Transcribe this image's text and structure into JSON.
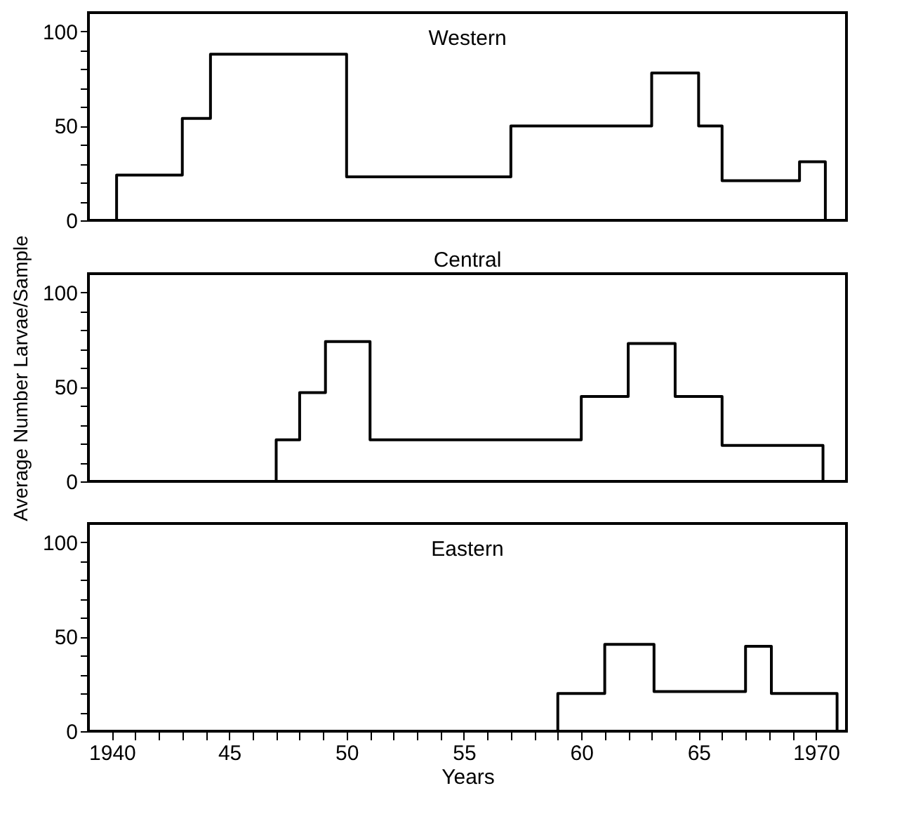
{
  "chart_data": [
    {
      "type": "step",
      "title": "Western",
      "xlim": [
        1939,
        1971.3
      ],
      "ylim": [
        0,
        110
      ],
      "tick_labels": "y",
      "yticks": [
        0,
        {
          "value": 10,
          "label": null
        },
        {
          "value": 20,
          "label": null
        },
        {
          "value": 30,
          "label": null
        },
        {
          "value": 40,
          "label": null
        },
        50,
        {
          "value": 60,
          "label": null
        },
        {
          "value": 70,
          "label": null
        },
        {
          "value": 80,
          "label": null
        },
        {
          "value": 90,
          "label": null
        },
        100
      ],
      "series": [
        {
          "color": "#000000",
          "x": [
            1939,
            1940.2,
            1943,
            1944.2,
            1950,
            1957,
            1963,
            1965,
            1966,
            1969.3,
            1970.4
          ],
          "values": [
            0,
            24,
            54,
            88,
            23,
            50,
            78,
            50,
            21,
            31,
            0
          ]
        }
      ],
      "grid": false,
      "legend": false
    },
    {
      "type": "step",
      "title": "Central",
      "ylabel": "Average Number Larvae/Sample",
      "xlim": [
        1939,
        1971.3
      ],
      "ylim": [
        0,
        110
      ],
      "tick_labels": "y",
      "yticks": [
        0,
        {
          "value": 10,
          "label": null
        },
        {
          "value": 20,
          "label": null
        },
        {
          "value": 30,
          "label": null
        },
        {
          "value": 40,
          "label": null
        },
        50,
        {
          "value": 60,
          "label": null
        },
        {
          "value": 70,
          "label": null
        },
        {
          "value": 80,
          "label": null
        },
        {
          "value": 90,
          "label": null
        },
        100
      ],
      "series": [
        {
          "color": "#000000",
          "x": [
            1939,
            1947,
            1948,
            1949.1,
            1951,
            1960,
            1962,
            1964,
            1966,
            1970.3
          ],
          "values": [
            0,
            22,
            47,
            74,
            22,
            45,
            73,
            45,
            19,
            0
          ]
        }
      ],
      "grid": false,
      "legend": false
    },
    {
      "type": "step",
      "title": "Eastern",
      "xlabel": "Years",
      "xlim": [
        1939,
        1971.3
      ],
      "ylim": [
        0,
        110
      ],
      "xticks": [
        1940,
        {
          "value": 1941,
          "label": null
        },
        {
          "value": 1942,
          "label": null
        },
        {
          "value": 1943,
          "label": null
        },
        {
          "value": 1944,
          "label": null
        },
        {
          "value": 1945,
          "label": "45"
        },
        {
          "value": 1946,
          "label": null
        },
        {
          "value": 1947,
          "label": null
        },
        {
          "value": 1948,
          "label": null
        },
        {
          "value": 1949,
          "label": null
        },
        {
          "value": 1950,
          "label": "50"
        },
        {
          "value": 1951,
          "label": null
        },
        {
          "value": 1952,
          "label": null
        },
        {
          "value": 1953,
          "label": null
        },
        {
          "value": 1954,
          "label": null
        },
        {
          "value": 1955,
          "label": "55"
        },
        {
          "value": 1956,
          "label": null
        },
        {
          "value": 1957,
          "label": null
        },
        {
          "value": 1958,
          "label": null
        },
        {
          "value": 1959,
          "label": null
        },
        {
          "value": 1960,
          "label": "60"
        },
        {
          "value": 1961,
          "label": null
        },
        {
          "value": 1962,
          "label": null
        },
        {
          "value": 1963,
          "label": null
        },
        {
          "value": 1964,
          "label": null
        },
        {
          "value": 1965,
          "label": "65"
        },
        {
          "value": 1966,
          "label": null
        },
        {
          "value": 1967,
          "label": null
        },
        {
          "value": 1968,
          "label": null
        },
        {
          "value": 1969,
          "label": null
        },
        1970
      ],
      "yticks": [
        0,
        {
          "value": 10,
          "label": null
        },
        {
          "value": 20,
          "label": null
        },
        {
          "value": 30,
          "label": null
        },
        {
          "value": 40,
          "label": null
        },
        50,
        {
          "value": 60,
          "label": null
        },
        {
          "value": 70,
          "label": null
        },
        {
          "value": 80,
          "label": null
        },
        {
          "value": 90,
          "label": null
        },
        100
      ],
      "series": [
        {
          "color": "#000000",
          "x": [
            1939,
            1959,
            1961,
            1963.1,
            1967,
            1968.1,
            1970.9
          ],
          "values": [
            0,
            20,
            46,
            21,
            45,
            20,
            0
          ]
        }
      ],
      "grid": false,
      "legend": false
    }
  ]
}
